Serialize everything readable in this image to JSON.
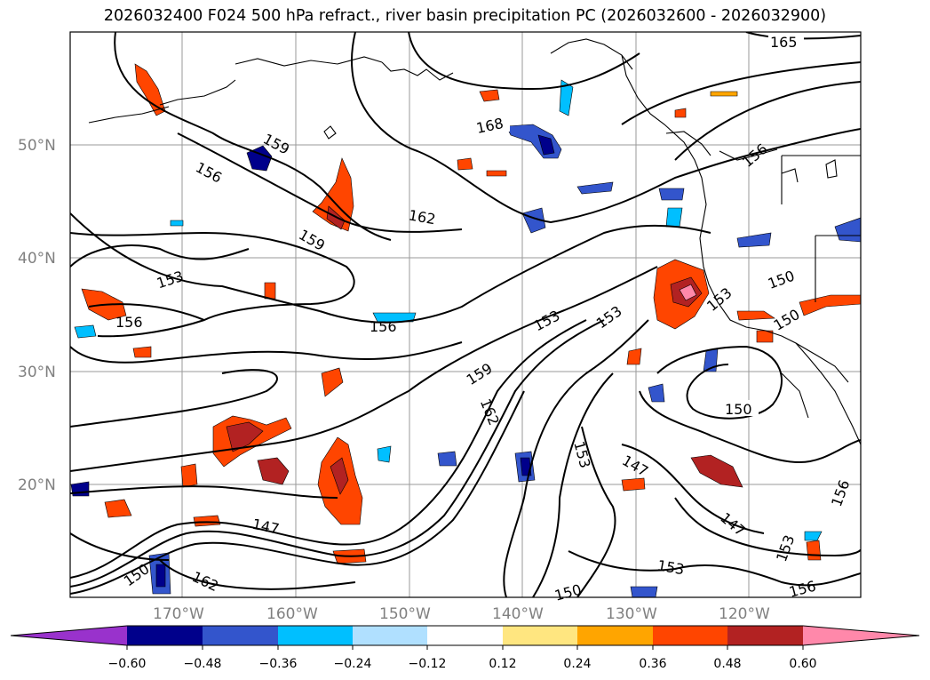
{
  "title": "2026032400 F024 500 hPa refract., river basin precipitation PC (2026032600 - 2026032900)",
  "map": {
    "lat_labels": [
      "50°N",
      "40°N",
      "30°N",
      "20°N"
    ],
    "lon_labels": [
      "170°W",
      "160°W",
      "150°W",
      "140°W",
      "130°W",
      "120°W"
    ],
    "contour_labels": [
      "165",
      "168",
      "159",
      "156",
      "162",
      "159",
      "153",
      "156",
      "156",
      "153",
      "153",
      "159",
      "162",
      "156",
      "150",
      "153",
      "150",
      "150",
      "153",
      "147",
      "147",
      "150",
      "162",
      "153",
      "156",
      "153",
      "150",
      "147",
      "156"
    ]
  },
  "colorbar": {
    "ticks": [
      "−0.60",
      "−0.48",
      "−0.36",
      "−0.24",
      "−0.12",
      "0.12",
      "0.24",
      "0.36",
      "0.48",
      "0.60"
    ],
    "colors": [
      "#9932cc",
      "#00008b",
      "#3355cc",
      "#00bfff",
      "#b0e0ff",
      "#ffffff",
      "#ffe680",
      "#ffa500",
      "#ff4500",
      "#b22222",
      "#ff88aa"
    ]
  }
}
